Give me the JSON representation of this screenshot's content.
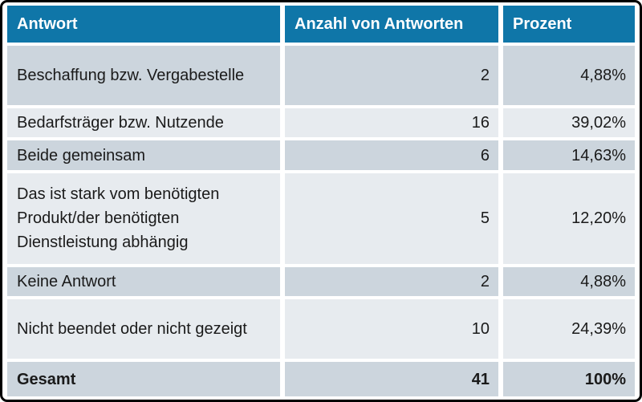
{
  "table": {
    "columns": [
      {
        "label": "Antwort"
      },
      {
        "label": "Anzahl von Antworten"
      },
      {
        "label": "Prozent"
      }
    ],
    "rows": [
      {
        "antwort": "Beschaffung bzw. Vergabestelle",
        "anzahl": "2",
        "prozent": "4,88%"
      },
      {
        "antwort": "Bedarfsträger bzw. Nutzende",
        "anzahl": "16",
        "prozent": "39,02%"
      },
      {
        "antwort": "Beide gemeinsam",
        "anzahl": "6",
        "prozent": "14,63%"
      },
      {
        "antwort": "Das ist stark vom benötigten Produkt/der benötigten Dienstleistung abhängig",
        "anzahl": "5",
        "prozent": "12,20%"
      },
      {
        "antwort": "Keine Antwort",
        "anzahl": "2",
        "prozent": "4,88%"
      },
      {
        "antwort": "Nicht beendet oder nicht gezeigt",
        "anzahl": "10",
        "prozent": "24,39%"
      }
    ],
    "total": {
      "antwort": "Gesamt",
      "anzahl": "41",
      "prozent": "100%"
    }
  },
  "colors": {
    "header_bg": "#0f76a8",
    "header_text": "#ffffff",
    "row_dark": "#ccd5dd",
    "row_light": "#e7ebef",
    "body_text": "#1a1a1a",
    "frame_border": "#000000"
  },
  "chart_data": {
    "type": "table",
    "columns": [
      "Antwort",
      "Anzahl von Antworten",
      "Prozent"
    ],
    "rows": [
      [
        "Beschaffung bzw. Vergabestelle",
        2,
        "4,88%"
      ],
      [
        "Bedarfsträger bzw. Nutzende",
        16,
        "39,02%"
      ],
      [
        "Beide gemeinsam",
        6,
        "14,63%"
      ],
      [
        "Das ist stark vom benötigten Produkt/der benötigten Dienstleistung abhängig",
        5,
        "12,20%"
      ],
      [
        "Keine Antwort",
        2,
        "4,88%"
      ],
      [
        "Nicht beendet oder nicht gezeigt",
        10,
        "24,39%"
      ],
      [
        "Gesamt",
        41,
        "100%"
      ]
    ],
    "layout": {
      "header_fill": "#0f76a8",
      "alternating_row_fills": [
        "#ccd5dd",
        "#e7ebef"
      ],
      "total_row_bold": true
    }
  }
}
